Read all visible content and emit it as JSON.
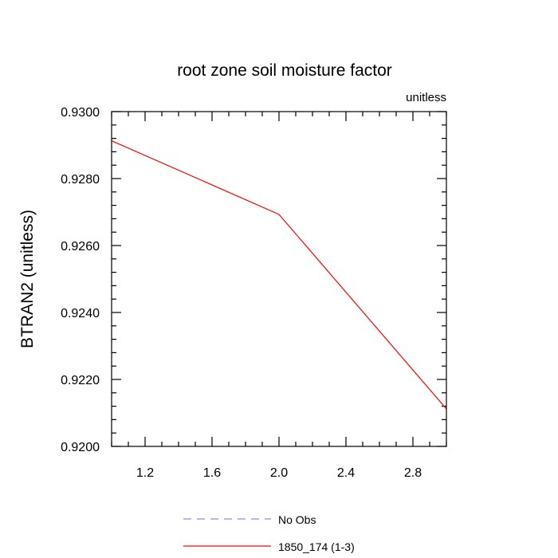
{
  "chart_data": {
    "type": "line",
    "title": "root zone soil moisture factor",
    "units_label": "unitless",
    "xlabel": "",
    "ylabel": "BTRAN2  (unitless)",
    "xlim": [
      1.0,
      3.0
    ],
    "ylim": [
      0.92,
      0.93
    ],
    "x_major_ticks": [
      1.2,
      1.6,
      2.0,
      2.4,
      2.8
    ],
    "x_tick_labels": [
      "1.2",
      "1.6",
      "2.0",
      "2.4",
      "2.8"
    ],
    "x_minor_step": 0.1,
    "y_major_ticks": [
      0.92,
      0.922,
      0.924,
      0.926,
      0.928,
      0.93
    ],
    "y_tick_labels": [
      "0.9200",
      "0.9220",
      "0.9240",
      "0.9260",
      "0.9280",
      "0.9300"
    ],
    "y_minor_step": 0.0004,
    "grid": false,
    "legend_position": "bottom",
    "series": [
      {
        "name": "No Obs",
        "color": "#8f8fd8",
        "dash": "dashed",
        "x": [],
        "y": []
      },
      {
        "name": "1850_174 (1-3)",
        "color": "#ff0000",
        "dash": "solid",
        "x": [
          1.0,
          2.0,
          3.0
        ],
        "y": [
          0.92913,
          0.92693,
          0.92112
        ]
      }
    ]
  }
}
